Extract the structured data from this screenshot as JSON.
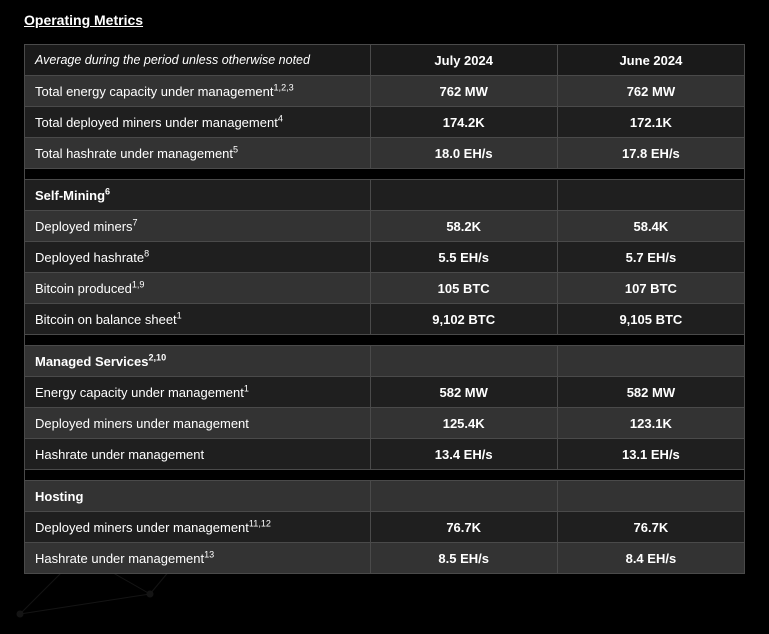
{
  "title": "Operating Metrics",
  "table": {
    "background_color": "#000000",
    "border_color": "#4a4a4a",
    "row_alt_bg_light": "#333333",
    "row_alt_bg_dark": "#1f1f1f",
    "text_color": "#ffffff",
    "header": {
      "label_text": "Average during the period unless otherwise noted",
      "col1": "July 2024",
      "col2": "June 2024"
    },
    "rows": [
      {
        "type": "data",
        "shade": "odd",
        "label": "Total energy capacity under management",
        "sup": "1,2,3",
        "v1": "762 MW",
        "v2": "762 MW"
      },
      {
        "type": "data",
        "shade": "even",
        "label": "Total deployed miners under management",
        "sup": "4",
        "v1": "174.2K",
        "v2": "172.1K"
      },
      {
        "type": "data",
        "shade": "odd",
        "label": "Total hashrate under management",
        "sup": "5",
        "v1": "18.0 EH/s",
        "v2": "17.8 EH/s"
      },
      {
        "type": "spacer"
      },
      {
        "type": "section",
        "shade": "even",
        "label": "Self-Mining",
        "sup": "6"
      },
      {
        "type": "data",
        "shade": "odd",
        "label": "Deployed miners",
        "sup": "7",
        "v1": "58.2K",
        "v2": "58.4K"
      },
      {
        "type": "data",
        "shade": "even",
        "label": "Deployed hashrate",
        "sup": "8",
        "v1": "5.5 EH/s",
        "v2": "5.7 EH/s"
      },
      {
        "type": "data",
        "shade": "odd",
        "label": "Bitcoin produced",
        "sup": "1,9",
        "v1": "105 BTC",
        "v2": "107 BTC"
      },
      {
        "type": "data",
        "shade": "even",
        "label": "Bitcoin on balance sheet",
        "sup": "1",
        "v1": "9,102 BTC",
        "v2": "9,105 BTC"
      },
      {
        "type": "spacer"
      },
      {
        "type": "section",
        "shade": "odd",
        "label": "Managed Services",
        "sup": "2,10"
      },
      {
        "type": "data",
        "shade": "even",
        "label": "Energy capacity under management",
        "sup": "1",
        "v1": "582 MW",
        "v2": "582 MW"
      },
      {
        "type": "data",
        "shade": "odd",
        "label": "Deployed miners under management",
        "sup": "",
        "v1": "125.4K",
        "v2": "123.1K"
      },
      {
        "type": "data",
        "shade": "even",
        "label": "Hashrate under management",
        "sup": "",
        "v1": "13.4 EH/s",
        "v2": "13.1 EH/s"
      },
      {
        "type": "spacer"
      },
      {
        "type": "section",
        "shade": "odd",
        "label": "Hosting",
        "sup": ""
      },
      {
        "type": "data",
        "shade": "even",
        "label": "Deployed miners under management",
        "sup": "11,12",
        "v1": "76.7K",
        "v2": "76.7K"
      },
      {
        "type": "data",
        "shade": "odd",
        "label": "Hashrate under management",
        "sup": "13",
        "v1": "8.5 EH/s",
        "v2": "8.4 EH/s"
      }
    ]
  }
}
